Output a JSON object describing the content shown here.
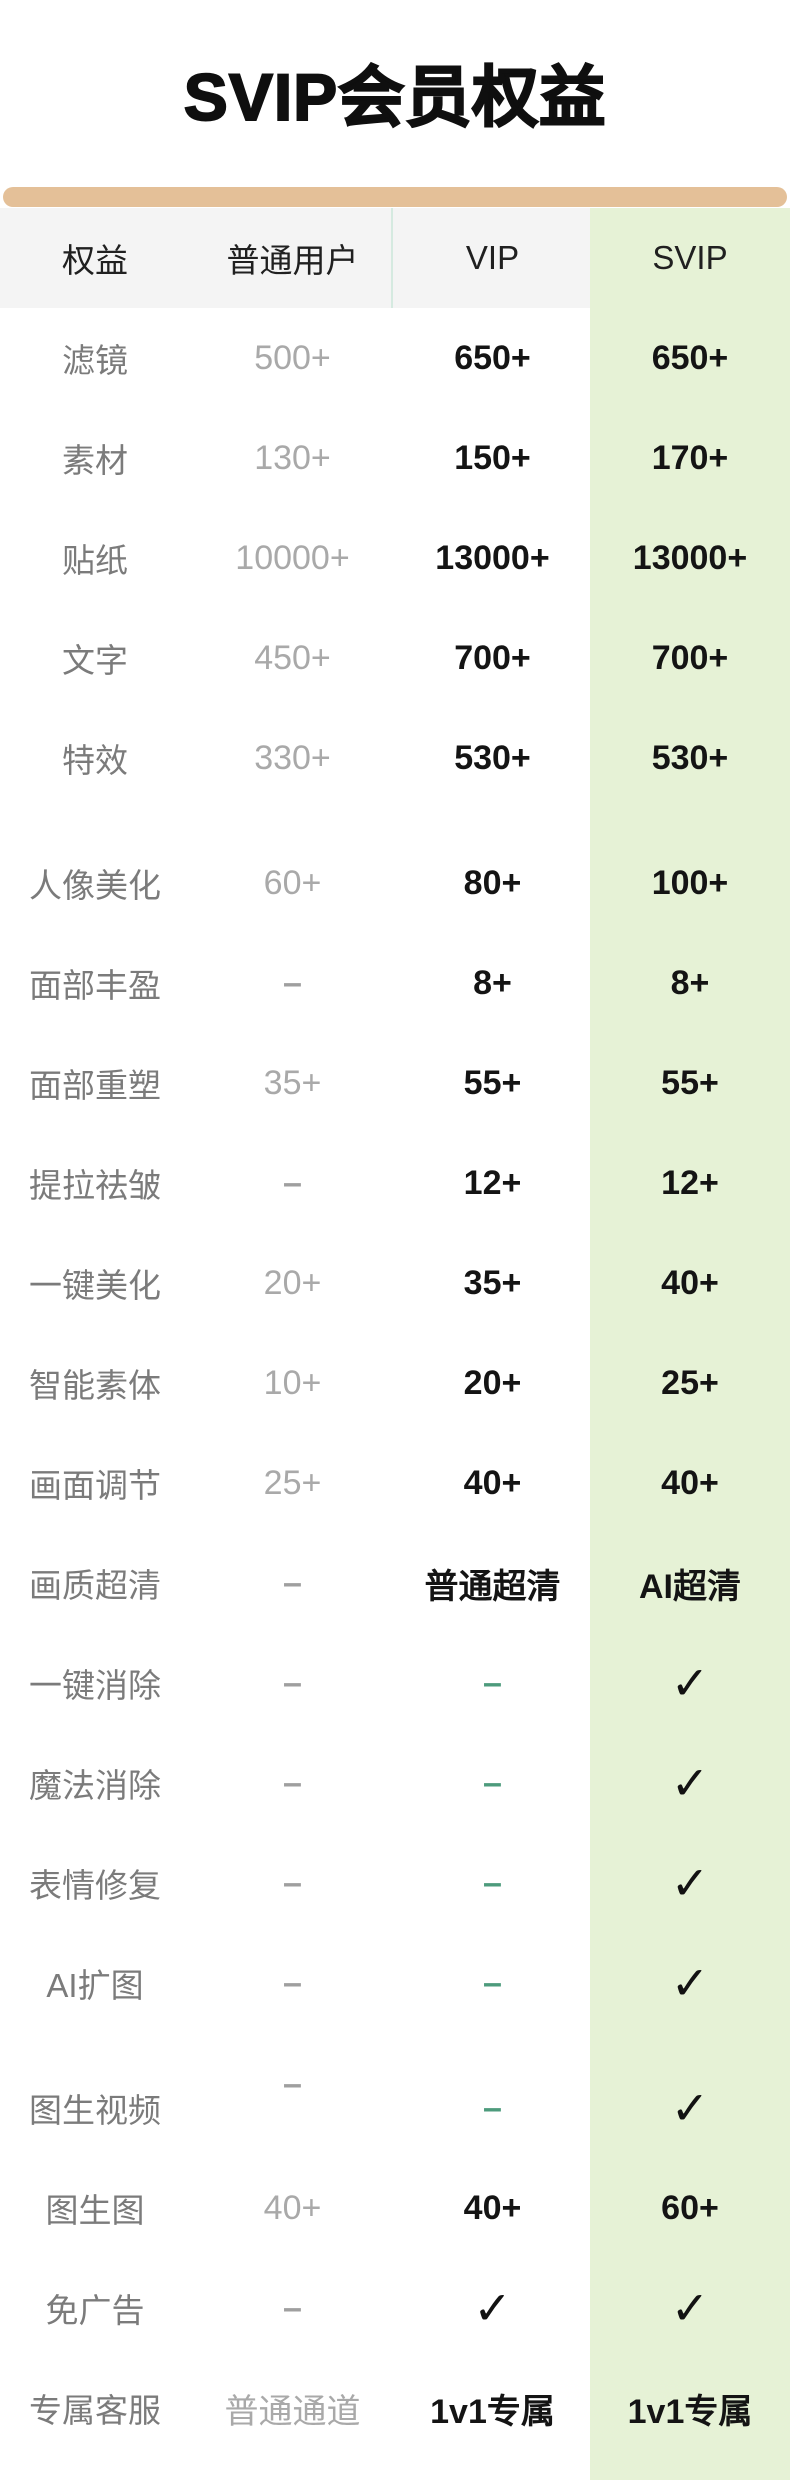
{
  "title": "SVIP会员权益",
  "colors": {
    "bar": "#e4c098",
    "svip_bg": "#e6f2d6",
    "header_bg": "#f4f4f4",
    "teal": "#4d9b7c",
    "divider": "#d5eae0",
    "text_dark": "#141414",
    "text_muted": "#a9a9a9",
    "text_label": "#7b7b7b"
  },
  "table": {
    "headers": [
      "权益",
      "普通用户",
      "VIP",
      "SVIP"
    ],
    "rows": [
      {
        "label": "滤镜",
        "cells": [
          {
            "text": "500+",
            "style": "muted"
          },
          {
            "text": "650+",
            "style": "strong"
          },
          {
            "text": "650+",
            "style": "strong"
          }
        ]
      },
      {
        "label": "素材",
        "cells": [
          {
            "text": "130+",
            "style": "muted"
          },
          {
            "text": "150+",
            "style": "strong"
          },
          {
            "text": "170+",
            "style": "strong"
          }
        ]
      },
      {
        "label": "贴纸",
        "cells": [
          {
            "text": "10000+",
            "style": "muted"
          },
          {
            "text": "13000+",
            "style": "strong"
          },
          {
            "text": "13000+",
            "style": "strong"
          }
        ]
      },
      {
        "label": "文字",
        "cells": [
          {
            "text": "450+",
            "style": "muted"
          },
          {
            "text": "700+",
            "style": "strong"
          },
          {
            "text": "700+",
            "style": "strong"
          }
        ]
      },
      {
        "label": "特效",
        "cells": [
          {
            "text": "330+",
            "style": "muted"
          },
          {
            "text": "530+",
            "style": "strong"
          },
          {
            "text": "530+",
            "style": "strong"
          }
        ]
      },
      {
        "label": "人像美化",
        "group_gap": true,
        "cells": [
          {
            "text": "60+",
            "style": "muted"
          },
          {
            "text": "80+",
            "style": "strong"
          },
          {
            "text": "100+",
            "style": "strong"
          }
        ]
      },
      {
        "label": "面部丰盈",
        "cells": [
          {
            "text": "–",
            "style": "dash-muted"
          },
          {
            "text": "8+",
            "style": "strong"
          },
          {
            "text": "8+",
            "style": "strong"
          }
        ]
      },
      {
        "label": "面部重塑",
        "cells": [
          {
            "text": "35+",
            "style": "muted"
          },
          {
            "text": "55+",
            "style": "strong"
          },
          {
            "text": "55+",
            "style": "strong"
          }
        ]
      },
      {
        "label": "提拉祛皱",
        "cells": [
          {
            "text": "–",
            "style": "dash-muted"
          },
          {
            "text": "12+",
            "style": "strong"
          },
          {
            "text": "12+",
            "style": "strong"
          }
        ]
      },
      {
        "label": "一键美化",
        "cells": [
          {
            "text": "20+",
            "style": "muted"
          },
          {
            "text": "35+",
            "style": "strong"
          },
          {
            "text": "40+",
            "style": "strong"
          }
        ]
      },
      {
        "label": "智能素体",
        "cells": [
          {
            "text": "10+",
            "style": "muted"
          },
          {
            "text": "20+",
            "style": "strong"
          },
          {
            "text": "25+",
            "style": "strong"
          }
        ]
      },
      {
        "label": "画面调节",
        "cells": [
          {
            "text": "25+",
            "style": "muted"
          },
          {
            "text": "40+",
            "style": "strong"
          },
          {
            "text": "40+",
            "style": "strong"
          }
        ]
      },
      {
        "label": "画质超清",
        "cells": [
          {
            "text": "–",
            "style": "dash-muted"
          },
          {
            "text": "普通超清",
            "style": "strong"
          },
          {
            "text": "AI超清",
            "style": "strong"
          }
        ]
      },
      {
        "label": "一键消除",
        "cells": [
          {
            "text": "–",
            "style": "dash-muted"
          },
          {
            "text": "–",
            "style": "dash-accent"
          },
          {
            "text": "✓",
            "style": "check"
          }
        ]
      },
      {
        "label": "魔法消除",
        "cells": [
          {
            "text": "–",
            "style": "dash-muted"
          },
          {
            "text": "–",
            "style": "dash-accent"
          },
          {
            "text": "✓",
            "style": "check"
          }
        ]
      },
      {
        "label": "表情修复",
        "cells": [
          {
            "text": "–",
            "style": "dash-muted"
          },
          {
            "text": "–",
            "style": "dash-accent"
          },
          {
            "text": "✓",
            "style": "check"
          }
        ]
      },
      {
        "label": "AI扩图",
        "cells": [
          {
            "text": "–",
            "style": "dash-muted"
          },
          {
            "text": "–",
            "style": "dash-accent"
          },
          {
            "text": "✓",
            "style": "check"
          }
        ]
      },
      {
        "label": "图生视频",
        "group_gap": true,
        "cells": [
          {
            "text": "–",
            "style": "dash-muted",
            "offset": "up"
          },
          {
            "text": "–",
            "style": "dash-accent"
          },
          {
            "text": "✓",
            "style": "check"
          }
        ]
      },
      {
        "label": "图生图",
        "cells": [
          {
            "text": "40+",
            "style": "muted"
          },
          {
            "text": "40+",
            "style": "strong"
          },
          {
            "text": "60+",
            "style": "strong"
          }
        ]
      },
      {
        "label": "免广告",
        "cells": [
          {
            "text": "–",
            "style": "dash-muted"
          },
          {
            "text": "✓",
            "style": "check"
          },
          {
            "text": "✓",
            "style": "check"
          }
        ]
      },
      {
        "label": "专属客服",
        "cells": [
          {
            "text": "普通通道",
            "style": "muted"
          },
          {
            "text": "1v1专属",
            "style": "strong"
          },
          {
            "text": "1v1专属",
            "style": "strong"
          }
        ]
      }
    ]
  },
  "chart_data": {
    "type": "table",
    "title": "SVIP会员权益",
    "columns": [
      "权益",
      "普通用户",
      "VIP",
      "SVIP"
    ],
    "rows": [
      [
        "滤镜",
        "500+",
        "650+",
        "650+"
      ],
      [
        "素材",
        "130+",
        "150+",
        "170+"
      ],
      [
        "贴纸",
        "10000+",
        "13000+",
        "13000+"
      ],
      [
        "文字",
        "450+",
        "700+",
        "700+"
      ],
      [
        "特效",
        "330+",
        "530+",
        "530+"
      ],
      [
        "人像美化",
        "60+",
        "80+",
        "100+"
      ],
      [
        "面部丰盈",
        "–",
        "8+",
        "8+"
      ],
      [
        "面部重塑",
        "35+",
        "55+",
        "55+"
      ],
      [
        "提拉祛皱",
        "–",
        "12+",
        "12+"
      ],
      [
        "一键美化",
        "20+",
        "35+",
        "40+"
      ],
      [
        "智能素体",
        "10+",
        "20+",
        "25+"
      ],
      [
        "画面调节",
        "25+",
        "40+",
        "40+"
      ],
      [
        "画质超清",
        "–",
        "普通超清",
        "AI超清"
      ],
      [
        "一键消除",
        "–",
        "–",
        "✓"
      ],
      [
        "魔法消除",
        "–",
        "–",
        "✓"
      ],
      [
        "表情修复",
        "–",
        "–",
        "✓"
      ],
      [
        "AI扩图",
        "–",
        "–",
        "✓"
      ],
      [
        "图生视频",
        "–",
        "–",
        "✓"
      ],
      [
        "图生图",
        "40+",
        "40+",
        "60+"
      ],
      [
        "免广告",
        "–",
        "✓",
        "✓"
      ],
      [
        "专属客服",
        "普通通道",
        "1v1专属",
        "1v1专属"
      ]
    ],
    "layout_hints": {
      "highlight_column": "SVIP",
      "highlight_color": "#e6f2d6",
      "header_background": "#f4f4f4",
      "grid": false
    }
  }
}
